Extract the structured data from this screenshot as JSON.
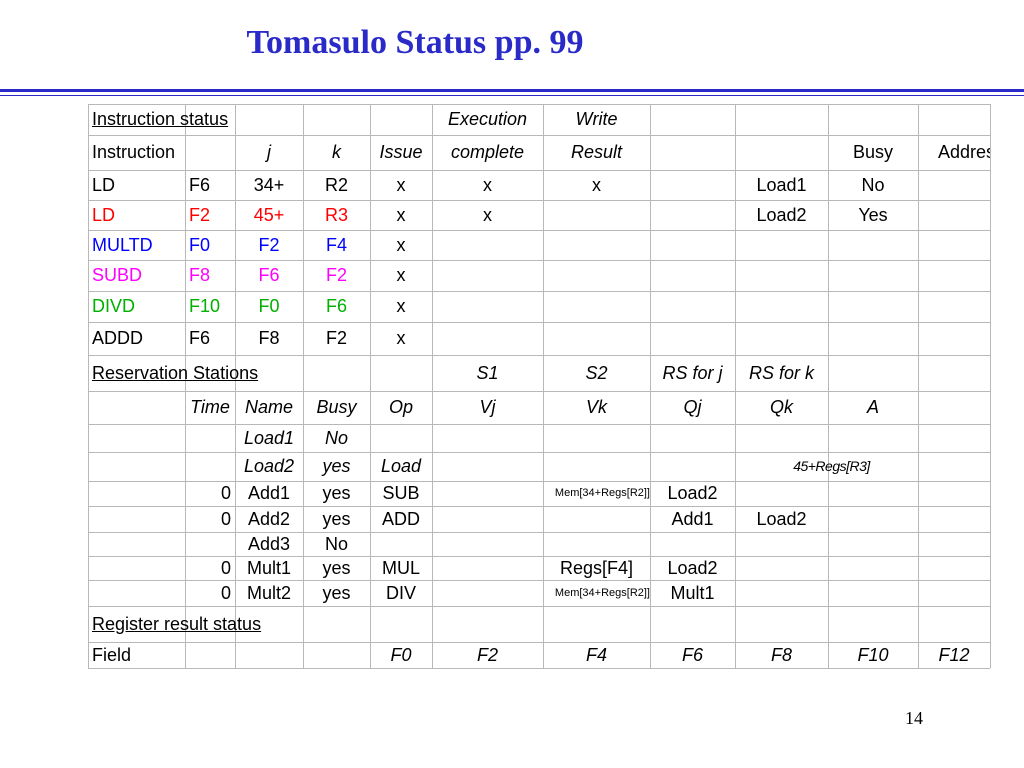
{
  "slide": {
    "title": "Tomasulo Status pp. 99",
    "page_number": "14",
    "colors": {
      "title": "#2a2ac8",
      "red": "#ff0000",
      "blue": "#0000ff",
      "magenta": "#ff00ff",
      "green": "#00b000"
    }
  },
  "instruction_status": {
    "header1": {
      "label": "Instruction status",
      "execution": "Execution",
      "write": "Write"
    },
    "header2": {
      "instruction": "Instruction",
      "j": "j",
      "k": "k",
      "issue": "Issue",
      "complete": "complete",
      "result": "Result",
      "busy": "Busy",
      "address": "Address"
    },
    "rows": [
      {
        "op": "LD",
        "dest": "F6",
        "j": "34+",
        "k": "R2",
        "issue": "x",
        "complete": "x",
        "result": "x",
        "unit": "Load1",
        "busy": "No",
        "color": "#000000"
      },
      {
        "op": "LD",
        "dest": "F2",
        "j": "45+",
        "k": "R3",
        "issue": "x",
        "complete": "x",
        "result": "",
        "unit": "Load2",
        "busy": "Yes",
        "color": "#ff0000"
      },
      {
        "op": "MULTD",
        "dest": "F0",
        "j": "F2",
        "k": "F4",
        "issue": "x",
        "complete": "",
        "result": "",
        "unit": "",
        "busy": "",
        "color": "#0000ff"
      },
      {
        "op": "SUBD",
        "dest": "F8",
        "j": "F6",
        "k": "F2",
        "issue": "x",
        "complete": "",
        "result": "",
        "unit": "",
        "busy": "",
        "color": "#ff00ff"
      },
      {
        "op": "DIVD",
        "dest": "F10",
        "j": "F0",
        "k": "F6",
        "issue": "x",
        "complete": "",
        "result": "",
        "unit": "",
        "busy": "",
        "color": "#00b000"
      },
      {
        "op": "ADDD",
        "dest": "F6",
        "j": "F8",
        "k": "F2",
        "issue": "x",
        "complete": "",
        "result": "",
        "unit": "",
        "busy": "",
        "color": "#000000"
      }
    ]
  },
  "reservation_stations": {
    "header1": {
      "label": "Reservation Stations",
      "s1": "S1",
      "s2": "S2",
      "rs_j": "RS for j",
      "rs_k": "RS for k"
    },
    "header2": {
      "time": "Time",
      "name": "Name",
      "busy": "Busy",
      "op": "Op",
      "vj": "Vj",
      "vk": "Vk",
      "qj": "Qj",
      "qk": "Qk",
      "a": "A"
    },
    "rows": [
      {
        "time": "",
        "name": "Load1",
        "busy": "No",
        "op": "",
        "vj": "",
        "vk": "",
        "qj": "",
        "qk": "",
        "a": ""
      },
      {
        "time": "",
        "name": "Load2",
        "busy": "yes",
        "op": "Load",
        "vj": "",
        "vk": "",
        "qj": "",
        "qk": "",
        "a": "45+Regs[R3]"
      },
      {
        "time": "0",
        "name": "Add1",
        "busy": "yes",
        "op": "SUB",
        "vj": "",
        "vk": "Mem[34+Regs[R2]]",
        "qj": "Load2",
        "qk": "",
        "a": ""
      },
      {
        "time": "0",
        "name": "Add2",
        "busy": "yes",
        "op": "ADD",
        "vj": "",
        "vk": "",
        "qj": "Add1",
        "qk": "Load2",
        "a": ""
      },
      {
        "time": "",
        "name": "Add3",
        "busy": "No",
        "op": "",
        "vj": "",
        "vk": "",
        "qj": "",
        "qk": "",
        "a": ""
      },
      {
        "time": "0",
        "name": "Mult1",
        "busy": "yes",
        "op": "MUL",
        "vj": "",
        "vk": "Regs[F4]",
        "qj": "Load2",
        "qk": "",
        "a": ""
      },
      {
        "time": "0",
        "name": "Mult2",
        "busy": "yes",
        "op": "DIV",
        "vj": "",
        "vk": "Mem[34+Regs[R2]]",
        "qj": "Mult1",
        "qk": "",
        "a": ""
      }
    ]
  },
  "register_status": {
    "label": "Register result status",
    "field_label": "Field",
    "registers": [
      "F0",
      "F2",
      "F4",
      "F6",
      "F8",
      "F10",
      "F12"
    ]
  }
}
